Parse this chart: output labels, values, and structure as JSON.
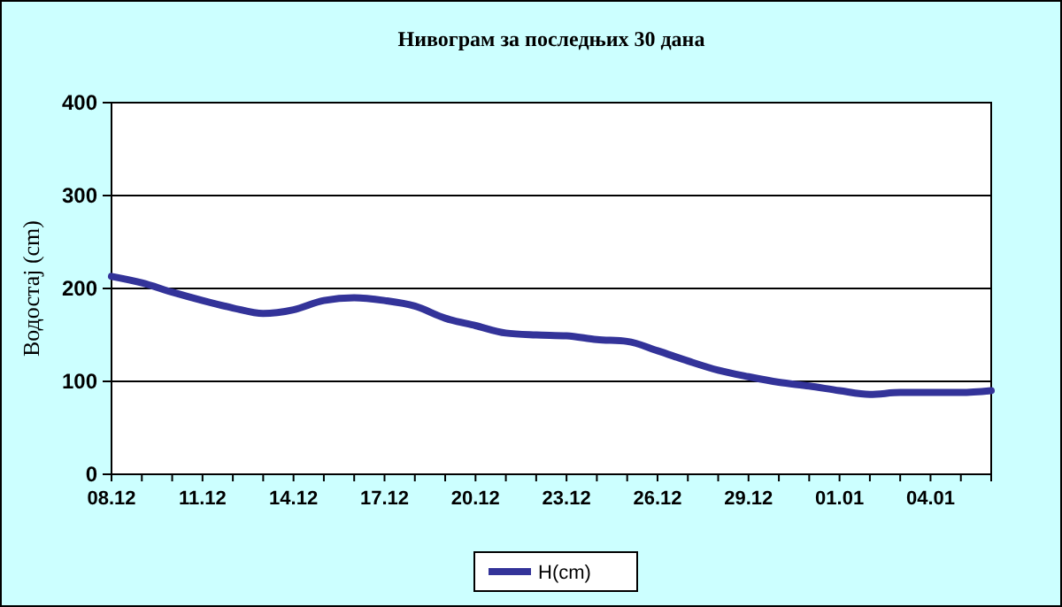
{
  "chart_data": {
    "type": "line",
    "title": "Нивограм за последњих 30 дана",
    "ylabel": "Водостај (cm)",
    "categories": [
      "08.12",
      null,
      null,
      "11.12",
      null,
      null,
      "14.12",
      null,
      null,
      "17.12",
      null,
      null,
      "20.12",
      null,
      null,
      "23.12",
      null,
      null,
      "26.12",
      null,
      null,
      "29.12",
      null,
      null,
      "01.01",
      null,
      null,
      "04.01",
      null,
      null
    ],
    "series": [
      {
        "name": "H(cm)",
        "color": "#333399",
        "values": [
          213,
          206,
          196,
          187,
          179,
          173,
          177,
          187,
          190,
          187,
          181,
          168,
          160,
          152,
          150,
          149,
          145,
          143,
          133,
          122,
          112,
          105,
          99,
          95,
          90,
          86,
          88,
          88,
          88,
          90
        ]
      }
    ],
    "ylim": [
      0,
      400
    ],
    "yticks": [
      0,
      100,
      200,
      300,
      400
    ],
    "grid": "y",
    "legend": "bottom",
    "marker": "none",
    "line_style": "solid"
  }
}
